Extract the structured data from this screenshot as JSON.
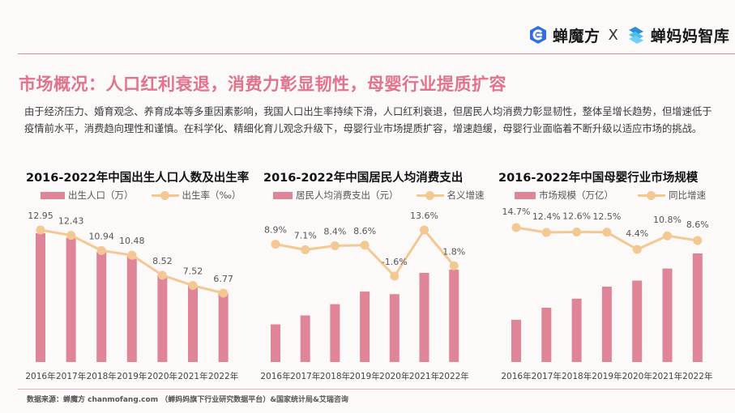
{
  "header": {
    "brand1": "蝉魔方",
    "separator": "X",
    "brand2": "蝉妈妈智库",
    "brand1_icon": "chanmofang-logo-icon",
    "brand2_icon": "chanmama-logo-icon",
    "brand1_color": "#2f6fe0",
    "brand2_color": "#33a8e8"
  },
  "title": "市场概况：人口红利衰退，消费力彰显韧性，母婴行业提质扩容",
  "description": "由于经济压力、婚育观念、养育成本等多重因素影响，我国人口出生率持续下滑，人口红利衰退，但居民人均消费力彰显韧性，整体呈增长趋势，但增速低于疫情前水平，消费趋向理性和谨慎。在科学化、精细化育儿观念升级下，母婴行业市场提质扩容，增速趋缓，母婴行业面临着不断升级以适应市场的挑战。",
  "colors": {
    "accent": "#e2728b",
    "bar": "#e08498",
    "line": "#f3c893"
  },
  "footer": "数据来源：蝉魔方 chanmofang.com （蝉妈妈旗下行业研究数据平台）&国家统计局&艾瑞咨询",
  "chart_data": [
    {
      "type": "bar",
      "title": "2016-2022年中国出生人口人数及出生率",
      "categories": [
        "2016年",
        "2017年",
        "2018年",
        "2019年",
        "2020年",
        "2021年",
        "2022年"
      ],
      "series": [
        {
          "name": "出生人口（万）",
          "type": "bar",
          "values": [
            1786,
            1723,
            1523,
            1465,
            1202,
            1062,
            956
          ]
        },
        {
          "name": "出生率（‰）",
          "type": "line",
          "values": [
            12.95,
            12.43,
            10.94,
            10.48,
            8.52,
            7.52,
            6.77
          ],
          "labels": [
            "12.95",
            "12.43",
            "10.94",
            "10.48",
            "8.52",
            "7.52",
            "6.77"
          ]
        }
      ],
      "legend": "top-left",
      "grid": false
    },
    {
      "type": "bar",
      "title": "2016-2022年中国居民人均消费支出",
      "categories": [
        "2016年",
        "2017年",
        "2018年",
        "2019年",
        "2020年",
        "2021年",
        "2022年"
      ],
      "series": [
        {
          "name": "居民人均消费支出（元）",
          "type": "bar",
          "values": [
            17111,
            18322,
            19853,
            21559,
            21210,
            24100,
            24538
          ]
        },
        {
          "name": "名义增速",
          "type": "line",
          "values": [
            8.9,
            7.1,
            8.4,
            8.6,
            -1.6,
            13.6,
            1.8
          ],
          "labels": [
            "8.9%",
            "7.1%",
            "8.4%",
            "8.6%",
            "-1.6%",
            "13.6%",
            "1.8%"
          ]
        }
      ],
      "legend": "top-left",
      "grid": false
    },
    {
      "type": "bar",
      "title": "2016-2022年中国母婴行业市场规模",
      "categories": [
        "2016年",
        "2017年",
        "2018年",
        "2019年",
        "2020年",
        "2021年",
        "2022年"
      ],
      "series": [
        {
          "name": "市场规模（万亿）",
          "type": "bar",
          "values": [
            2.4,
            2.8,
            3.1,
            3.5,
            3.7,
            4.1,
            4.6
          ]
        },
        {
          "name": "同比增速",
          "type": "line",
          "values": [
            14.7,
            12.4,
            12.6,
            12.5,
            4.4,
            10.8,
            8.6
          ],
          "labels": [
            "14.7%",
            "12.4%",
            "12.6%",
            "12.5%",
            "4.4%",
            "10.8%",
            "8.6%"
          ]
        }
      ],
      "legend": "top-left",
      "grid": false
    }
  ]
}
